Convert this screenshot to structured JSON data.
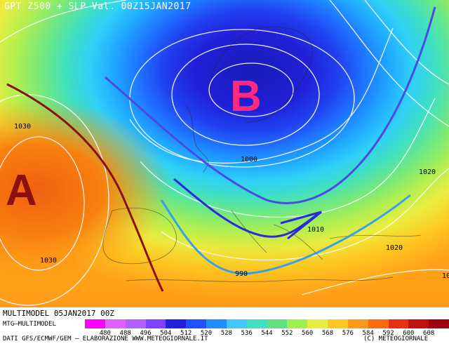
{
  "title": "GPT Z500 + SLP Val. 00Z15JAN2017",
  "centers": {
    "low": "B",
    "high": "A"
  },
  "isobar_labels": [
    "1030",
    "1000",
    "1020",
    "1010",
    "1030",
    "1020",
    "990",
    "10"
  ],
  "bottom": {
    "model_line": "MULTIMODEL 05JAN2017 00Z",
    "model_name": "MTG–MULTIMODEL",
    "source_line": "DATI GFS/ECMWF/GEM – ELABORAZIONE WWW.METEOGIORNALE.IT",
    "copyright": "(C) METEOGIORNALE"
  },
  "legend": {
    "ticks": [
      "480",
      "488",
      "496",
      "504",
      "512",
      "520",
      "528",
      "536",
      "544",
      "552",
      "560",
      "568",
      "576",
      "584",
      "592",
      "600",
      "608"
    ],
    "colors": [
      "#ff00ff",
      "#e060ff",
      "#b060ff",
      "#8040ff",
      "#2020e0",
      "#2050ff",
      "#1f8fff",
      "#40c8ff",
      "#40e0c0",
      "#60e080",
      "#a0ef50",
      "#e8ee40",
      "#ffc820",
      "#ff9a18",
      "#ff6a10",
      "#e83010",
      "#c01010"
    ]
  }
}
